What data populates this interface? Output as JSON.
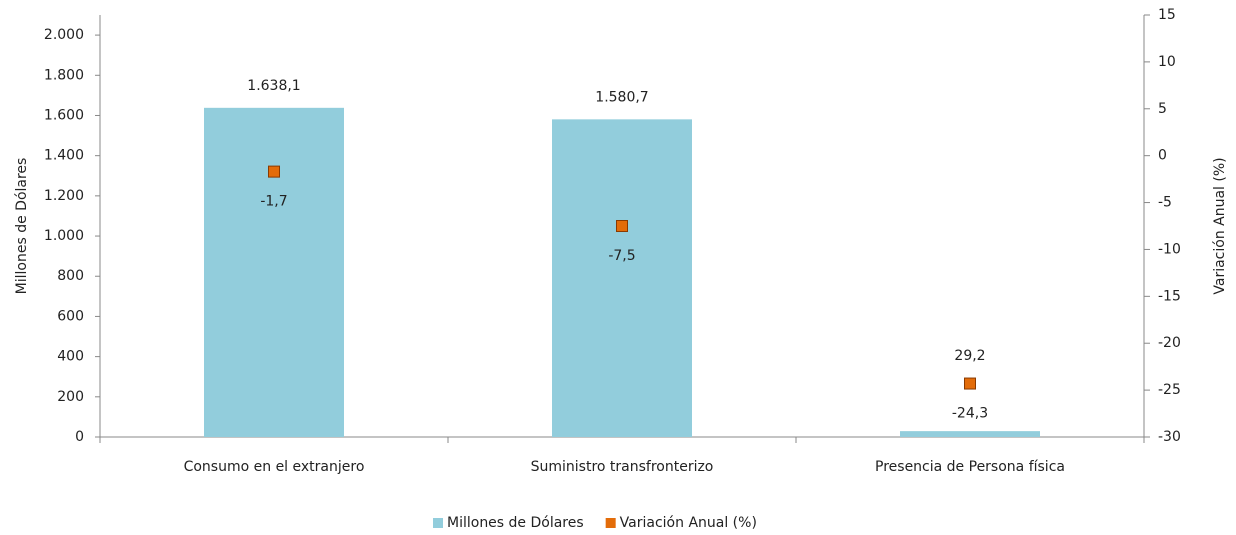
{
  "chart_data": {
    "type": "bar",
    "categories": [
      "Consumo en el extranjero",
      "Suministro transfronterizo",
      "Presencia de Persona física"
    ],
    "y_label": "Millones de Dólares",
    "y2_label": "Variación Anual (%)",
    "ylim": [
      0,
      2100
    ],
    "yticks": [
      0,
      200,
      400,
      600,
      800,
      {
        "value": 1000,
        "label": "1.000"
      },
      {
        "value": 1200,
        "label": "1.200"
      },
      {
        "value": 1400,
        "label": "1.400"
      },
      {
        "value": 1600,
        "label": "1.600"
      },
      {
        "value": 1800,
        "label": "1.800"
      },
      {
        "value": 2000,
        "label": "2.000"
      }
    ],
    "y2lim": [
      -30,
      15
    ],
    "y2ticks": [
      -30,
      -25,
      -20,
      -15,
      -10,
      -5,
      0,
      5,
      10,
      15
    ],
    "legend": "bottom",
    "series": [
      {
        "name": "Millones de Dólares",
        "type": "bar",
        "color": "#92CDDC",
        "values": [
          1638.1,
          1580.7,
          29.2
        ],
        "value_labels": [
          "1.638,1",
          "1.580,7",
          "29,2"
        ]
      },
      {
        "name": "Variación Anual (%)",
        "type": "scatter",
        "axis": "y2",
        "color": "#E36C09",
        "values": [
          -1.7,
          -7.5,
          -24.3
        ],
        "value_labels": [
          "-1,7",
          "-7,5",
          "-24,3"
        ]
      }
    ]
  }
}
